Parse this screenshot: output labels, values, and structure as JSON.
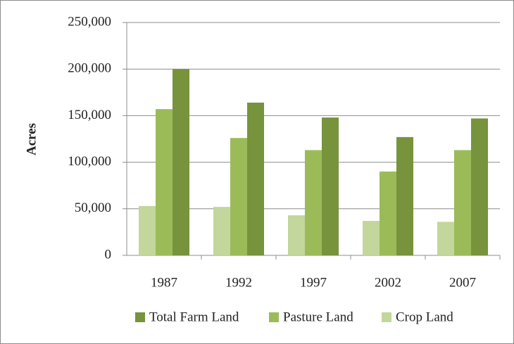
{
  "chart_data": {
    "type": "bar",
    "y_label": "Acres",
    "categories": [
      "1987",
      "1992",
      "1997",
      "2002",
      "2007"
    ],
    "series": [
      {
        "name": "Crop Land",
        "color": "#c3d69b",
        "values": [
          53000,
          52000,
          43000,
          37000,
          36000
        ]
      },
      {
        "name": "Pasture Land",
        "color": "#9bbb59",
        "values": [
          157000,
          126000,
          113000,
          90000,
          113000
        ]
      },
      {
        "name": "Total Farm Land",
        "color": "#77933c",
        "values": [
          200000,
          164000,
          148000,
          127000,
          147000
        ]
      }
    ],
    "legend_order": [
      2,
      1,
      0
    ],
    "ylim": [
      0,
      250000
    ],
    "yticks": [
      {
        "value": 0,
        "label": "0"
      },
      {
        "value": 50000,
        "label": "50,000"
      },
      {
        "value": 100000,
        "label": "100,000"
      },
      {
        "value": 150000,
        "label": "150,000"
      },
      {
        "value": 200000,
        "label": "200,000"
      },
      {
        "value": 250000,
        "label": "250,000"
      }
    ],
    "grid": true
  }
}
